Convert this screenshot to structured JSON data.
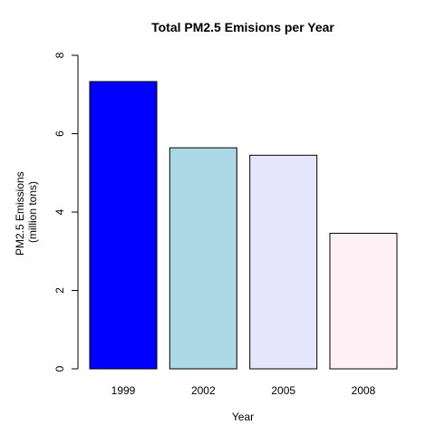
{
  "chart_data": {
    "type": "bar",
    "title": "Total PM2.5 Emisions per Year",
    "xlabel": "Year",
    "ylabel": [
      "PM2.5 Emissions",
      "(million tons)"
    ],
    "categories": [
      "1999",
      "2002",
      "2005",
      "2008"
    ],
    "values": [
      7.33,
      5.64,
      5.45,
      3.46
    ],
    "colors": [
      "#0000ff",
      "#add8e6",
      "#e6e6fa",
      "#fff0f5"
    ],
    "ylim": [
      0,
      8
    ],
    "yticks": [
      "0",
      "2",
      "4",
      "6",
      "8"
    ],
    "grid": false,
    "legend": "none"
  }
}
